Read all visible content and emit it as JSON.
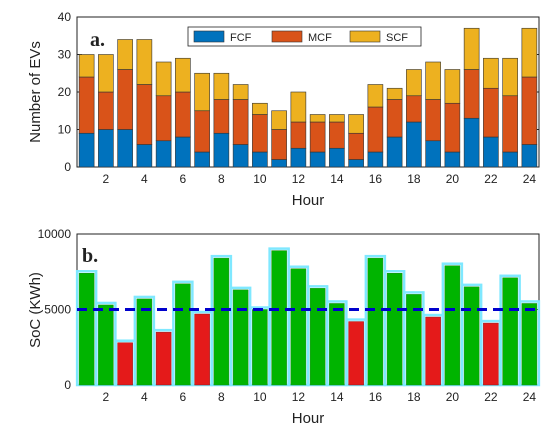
{
  "chart_data": [
    {
      "type": "bar",
      "stacked": true,
      "panel_label": "a.",
      "xlabel": "Hour",
      "ylabel": "Number of EVs",
      "ylim": [
        0,
        40
      ],
      "yticks": [
        "0",
        "10",
        "20",
        "30",
        "40"
      ],
      "xticks": [
        "2",
        "4",
        "6",
        "8",
        "10",
        "12",
        "14",
        "16",
        "18",
        "20",
        "22",
        "24"
      ],
      "x": [
        1,
        2,
        3,
        4,
        5,
        6,
        7,
        8,
        9,
        10,
        11,
        12,
        13,
        14,
        15,
        16,
        17,
        18,
        19,
        20,
        21,
        22,
        23,
        24
      ],
      "legend_position": "top-center",
      "series": [
        {
          "name": "FCF",
          "color": "#0072bd",
          "values": [
            9,
            10,
            10,
            6,
            7,
            8,
            4,
            9,
            6,
            4,
            2,
            5,
            4,
            5,
            2,
            4,
            8,
            12,
            7,
            4,
            13,
            8,
            4,
            6
          ]
        },
        {
          "name": "MCF",
          "color": "#d95319",
          "values": [
            15,
            10,
            16,
            16,
            12,
            12,
            11,
            9,
            12,
            10,
            8,
            7,
            8,
            7,
            7,
            12,
            10,
            7,
            11,
            13,
            13,
            13,
            15,
            18
          ]
        },
        {
          "name": "SCF",
          "color": "#edb120",
          "values": [
            6,
            10,
            8,
            12,
            9,
            9,
            10,
            7,
            4,
            3,
            5,
            8,
            2,
            2,
            5,
            6,
            3,
            7,
            10,
            9,
            11,
            8,
            10,
            13
          ]
        }
      ]
    },
    {
      "type": "bar",
      "panel_label": "b.",
      "xlabel": "Hour",
      "ylabel": "SoC (KWh)",
      "ylim": [
        0,
        10000
      ],
      "yticks": [
        "0",
        "5000",
        "10000"
      ],
      "xticks": [
        "2",
        "4",
        "6",
        "8",
        "10",
        "12",
        "14",
        "16",
        "18",
        "20",
        "22",
        "24"
      ],
      "x": [
        1,
        2,
        3,
        4,
        5,
        6,
        7,
        8,
        9,
        10,
        11,
        12,
        13,
        14,
        15,
        16,
        17,
        18,
        19,
        20,
        21,
        22,
        23,
        24
      ],
      "values": [
        7400,
        5300,
        2800,
        5700,
        3500,
        6700,
        4700,
        8400,
        6300,
        5000,
        8900,
        7700,
        6400,
        5400,
        4200,
        8400,
        7400,
        6000,
        4500,
        7900,
        6500,
        4100,
        7100,
        5400
      ],
      "threshold": 5000,
      "colors": {
        "above": "#00b400",
        "below": "#e41a1a",
        "threshold": "#0000cc",
        "glow": "#7fe8ff"
      }
    }
  ]
}
